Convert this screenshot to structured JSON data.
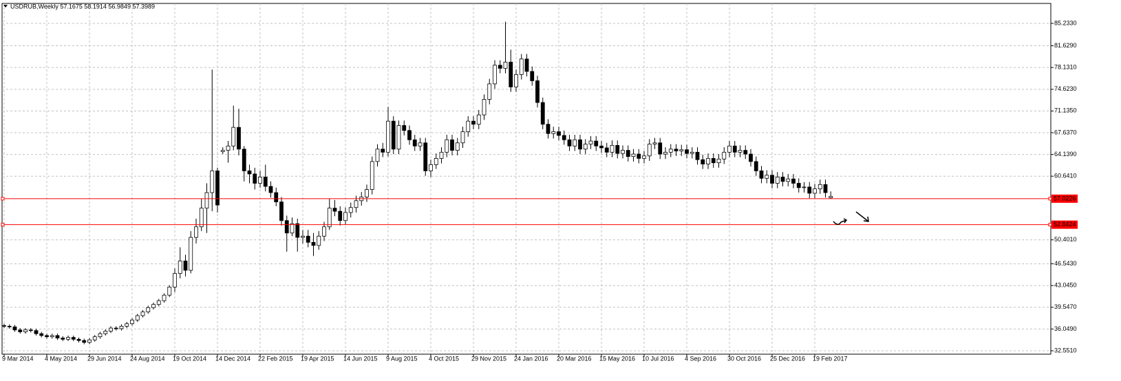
{
  "chart_data": {
    "type": "candlestick",
    "title": "USDRUB,Weekly  57.1675 58.1914 56.9849 57.3989",
    "categories": [
      "9 Mar 2014",
      null,
      null,
      null,
      null,
      null,
      null,
      null,
      "4 May 2014",
      null,
      null,
      null,
      null,
      null,
      null,
      null,
      "29 Jun 2014",
      null,
      null,
      null,
      null,
      null,
      null,
      null,
      "24 Aug 2014",
      null,
      null,
      null,
      null,
      null,
      null,
      null,
      "19 Oct 2014",
      null,
      null,
      null,
      null,
      null,
      null,
      null,
      "14 Dec 2014",
      null,
      null,
      null,
      null,
      null,
      null,
      null,
      "22 Feb 2015",
      null,
      null,
      null,
      null,
      null,
      null,
      null,
      "19 Apr 2015",
      null,
      null,
      null,
      null,
      null,
      null,
      null,
      "14 Jun 2015",
      null,
      null,
      null,
      null,
      null,
      null,
      null,
      "9 Aug 2015",
      null,
      null,
      null,
      null,
      null,
      null,
      null,
      "4 Oct 2015",
      null,
      null,
      null,
      null,
      null,
      null,
      null,
      "29 Nov 2015",
      null,
      null,
      null,
      null,
      null,
      null,
      null,
      "24 Jan 2016",
      null,
      null,
      null,
      null,
      null,
      null,
      null,
      "20 Mar 2016",
      null,
      null,
      null,
      null,
      null,
      null,
      null,
      "15 May 2016",
      null,
      null,
      null,
      null,
      null,
      null,
      null,
      "10 Jul 2016",
      null,
      null,
      null,
      null,
      null,
      null,
      null,
      "4 Sep 2016",
      null,
      null,
      null,
      null,
      null,
      null,
      null,
      "30 Oct 2016",
      null,
      null,
      null,
      null,
      null,
      null,
      null,
      "25 Dec 2016",
      null,
      null,
      null,
      null,
      null,
      null,
      null,
      "19 Feb 2017",
      null,
      null,
      null
    ],
    "open": [
      36.6,
      36.5,
      36.4,
      35.9,
      35.6,
      35.9,
      35.8,
      35.3,
      35.0,
      34.8,
      35.0,
      34.6,
      34.4,
      34.7,
      34.4,
      34.2,
      33.9,
      34.3,
      34.8,
      35.3,
      35.7,
      36.2,
      36.1,
      36.5,
      36.9,
      37.5,
      38.2,
      38.8,
      39.5,
      40.0,
      40.6,
      41.5,
      42.8,
      45.0,
      47.0,
      45.5,
      50.8,
      52.5,
      55.5,
      58.0,
      61.5,
      64.6,
      64.8,
      65.5,
      68.5,
      65.0,
      61.5,
      61.0,
      59.5,
      60.5,
      59.0,
      58.0,
      56.5,
      53.5,
      51.5,
      53.0,
      50.8,
      51.0,
      50.0,
      49.5,
      51.0,
      52.5,
      55.5,
      55.0,
      53.5,
      54.8,
      55.6,
      56.7,
      57.3,
      58.5,
      63.0,
      65.0,
      64.5,
      69.5,
      65.0,
      68.8,
      68.0,
      66.5,
      65.5,
      66.0,
      61.5,
      62.5,
      63.5,
      64.5,
      66.5,
      64.8,
      66.0,
      67.8,
      69.5,
      69.0,
      70.5,
      73.0,
      75.5,
      78.5,
      78.0,
      79.0,
      75.0,
      77.0,
      79.5,
      77.5,
      76.0,
      72.5,
      69.0,
      67.5,
      67.8,
      67.2,
      66.5,
      65.5,
      66.5,
      65.0,
      65.8,
      66.3,
      65.5,
      65.2,
      64.5,
      65.6,
      64.3,
      64.8,
      63.8,
      64.2,
      63.5,
      63.9,
      65.8,
      66.0,
      64.2,
      64.5,
      65.0,
      64.7,
      64.9,
      64.3,
      64.5,
      63.3,
      62.6,
      63.5,
      62.8,
      63.4,
      64.5,
      65.5,
      64.5,
      64.8,
      64.2,
      63.0,
      61.5,
      60.3,
      60.8,
      59.5,
      60.5,
      59.8,
      60.2,
      59.5,
      58.8,
      58.9,
      57.9,
      58.6,
      59.3,
      57.1675
    ],
    "high": [
      36.9,
      36.8,
      36.7,
      36.2,
      36.2,
      36.2,
      36.1,
      35.6,
      35.3,
      35.3,
      35.3,
      34.9,
      35.0,
      35.0,
      34.7,
      34.5,
      34.6,
      35.1,
      35.6,
      36.0,
      36.5,
      36.5,
      36.8,
      37.2,
      37.8,
      38.5,
      39.1,
      39.8,
      40.3,
      40.9,
      41.8,
      43.1,
      45.8,
      49.2,
      48.0,
      51.8,
      53.8,
      57.0,
      59.5,
      77.8,
      62.0,
      65.3,
      66.3,
      72.0,
      71.5,
      65.5,
      62.5,
      62.0,
      61.5,
      62.5,
      59.8,
      58.8,
      57.3,
      54.3,
      54.0,
      53.8,
      52.0,
      52.0,
      51.5,
      51.8,
      53.3,
      57.0,
      56.8,
      55.8,
      55.6,
      56.4,
      57.5,
      58.1,
      59.3,
      63.8,
      65.8,
      66.0,
      71.8,
      70.3,
      69.6,
      69.6,
      68.8,
      67.3,
      66.8,
      66.8,
      63.3,
      64.3,
      65.3,
      67.3,
      67.3,
      66.8,
      68.6,
      70.3,
      70.3,
      71.3,
      73.8,
      76.3,
      79.3,
      79.3,
      85.5,
      81.0,
      77.8,
      80.3,
      80.3,
      78.3,
      76.8,
      73.3,
      69.8,
      68.6,
      68.6,
      68.0,
      67.3,
      67.3,
      67.3,
      66.6,
      67.1,
      67.1,
      66.3,
      66.0,
      66.4,
      66.4,
      65.6,
      65.6,
      65.0,
      65.0,
      64.7,
      66.6,
      66.8,
      66.8,
      65.3,
      65.8,
      65.8,
      65.7,
      65.7,
      65.3,
      65.3,
      64.1,
      64.3,
      64.3,
      64.2,
      65.3,
      66.3,
      66.3,
      65.6,
      65.6,
      65.0,
      63.8,
      62.3,
      61.6,
      61.6,
      61.3,
      61.3,
      61.0,
      61.0,
      60.3,
      59.7,
      59.7,
      59.4,
      60.1,
      60.1,
      58.1914
    ],
    "low": [
      36.2,
      36.1,
      35.6,
      35.3,
      35.3,
      35.5,
      35.0,
      34.7,
      34.5,
      34.5,
      34.3,
      34.1,
      34.1,
      34.1,
      33.9,
      33.6,
      33.6,
      34.0,
      34.5,
      35.0,
      35.4,
      35.8,
      35.8,
      36.2,
      36.6,
      37.2,
      37.9,
      38.5,
      39.2,
      39.7,
      40.3,
      41.2,
      42.0,
      44.2,
      44.5,
      45.0,
      49.8,
      51.8,
      51.5,
      55.0,
      54.8,
      64.2,
      62.8,
      64.8,
      64.0,
      59.8,
      59.5,
      58.5,
      58.8,
      58.2,
      57.2,
      55.8,
      52.7,
      48.5,
      51.0,
      48.5,
      49.8,
      49.2,
      47.8,
      48.8,
      50.2,
      52.0,
      54.2,
      52.7,
      52.8,
      54.0,
      54.8,
      55.9,
      56.5,
      57.7,
      62.2,
      63.7,
      63.8,
      64.2,
      64.2,
      67.2,
      65.7,
      64.7,
      64.7,
      60.7,
      60.5,
      61.8,
      62.7,
      63.7,
      64.0,
      64.0,
      65.2,
      67.0,
      68.2,
      68.2,
      69.7,
      72.2,
      74.7,
      77.2,
      77.2,
      74.2,
      74.2,
      76.2,
      76.7,
      75.2,
      71.7,
      68.2,
      66.7,
      66.7,
      66.4,
      65.7,
      64.7,
      64.7,
      64.2,
      64.2,
      65.0,
      64.7,
      64.4,
      63.7,
      63.7,
      63.5,
      63.5,
      63.0,
      63.0,
      62.7,
      62.7,
      63.1,
      65.0,
      63.4,
      63.4,
      63.7,
      63.9,
      63.9,
      63.5,
      63.5,
      62.5,
      61.8,
      61.8,
      62.0,
      62.0,
      62.6,
      63.7,
      63.7,
      63.7,
      63.4,
      62.2,
      60.7,
      59.5,
      59.5,
      58.7,
      58.7,
      59.0,
      59.0,
      58.7,
      58.0,
      58.0,
      57.1,
      57.1,
      57.8,
      57.2,
      56.9849
    ],
    "close": [
      36.5,
      36.4,
      35.9,
      35.6,
      35.9,
      35.8,
      35.3,
      35.0,
      34.8,
      35.0,
      34.6,
      34.4,
      34.7,
      34.4,
      34.2,
      33.9,
      34.3,
      34.8,
      35.3,
      35.7,
      36.2,
      36.1,
      36.5,
      36.9,
      37.5,
      38.2,
      38.8,
      39.5,
      40.0,
      40.6,
      41.5,
      42.8,
      45.0,
      47.0,
      45.5,
      50.8,
      52.5,
      55.5,
      58.0,
      61.5,
      56.0,
      64.8,
      65.5,
      68.5,
      65.0,
      61.5,
      61.0,
      59.5,
      60.5,
      59.0,
      58.0,
      56.5,
      53.5,
      51.5,
      53.0,
      50.8,
      51.0,
      50.0,
      49.5,
      51.0,
      52.5,
      55.5,
      55.0,
      53.5,
      54.8,
      55.6,
      56.7,
      57.3,
      58.5,
      63.0,
      65.0,
      64.5,
      69.5,
      65.0,
      68.8,
      68.0,
      66.5,
      65.5,
      66.0,
      61.5,
      62.5,
      63.5,
      64.5,
      66.5,
      64.8,
      66.0,
      67.8,
      69.5,
      69.0,
      70.5,
      73.0,
      75.5,
      78.5,
      78.0,
      79.0,
      75.0,
      77.0,
      79.5,
      77.5,
      76.0,
      72.5,
      69.0,
      67.5,
      67.8,
      67.2,
      66.5,
      65.5,
      66.5,
      65.0,
      65.8,
      66.3,
      65.5,
      65.2,
      64.5,
      65.6,
      64.3,
      64.8,
      63.8,
      64.2,
      63.5,
      63.9,
      65.8,
      66.0,
      64.2,
      64.5,
      65.0,
      64.7,
      64.9,
      64.3,
      64.5,
      63.3,
      62.6,
      63.5,
      62.8,
      63.4,
      64.5,
      65.5,
      64.5,
      64.8,
      64.2,
      63.0,
      61.5,
      60.3,
      60.8,
      59.5,
      60.5,
      59.8,
      60.2,
      59.5,
      58.8,
      58.9,
      57.9,
      58.6,
      59.3,
      58.0,
      57.3989
    ],
    "up_color": "#ffffff",
    "down_color": "#000000",
    "ylim": [
      32.0,
      88.44
    ],
    "yticks": [
      {
        "value": 85.233,
        "label": "85.2330"
      },
      {
        "value": 81.629,
        "label": "81.6290"
      },
      {
        "value": 78.131,
        "label": "78.1310"
      },
      {
        "value": 74.623,
        "label": "74.6230"
      },
      {
        "value": 71.135,
        "label": "71.1350"
      },
      {
        "value": 67.637,
        "label": "67.6370"
      },
      {
        "value": 64.139,
        "label": "64.1390"
      },
      {
        "value": 60.641,
        "label": "60.6410"
      },
      {
        "value": 50.401,
        "label": "50.4010"
      },
      {
        "value": 46.543,
        "label": "46.5430"
      },
      {
        "value": 43.045,
        "label": "43.0450"
      },
      {
        "value": 39.547,
        "label": "39.5470"
      },
      {
        "value": 36.049,
        "label": "36.0490"
      },
      {
        "value": 32.551,
        "label": "32.5510"
      }
    ],
    "grid": true,
    "hlines": [
      {
        "value": 57.0226,
        "label": "57.0226",
        "color": "#ff0000"
      },
      {
        "value": 52.8424,
        "label": "52.8424",
        "color": "#ff0000"
      }
    ]
  }
}
